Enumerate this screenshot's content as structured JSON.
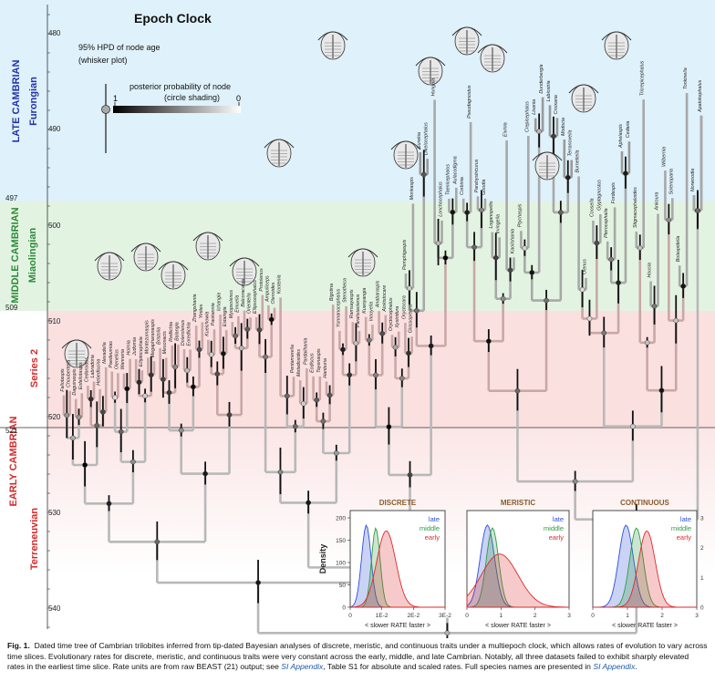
{
  "title": "Epoch Clock",
  "legend": {
    "hpd_label_line1": "95% HPD of node age",
    "hpd_label_line2": "(whisker plot)",
    "pp_label_line1": "posterior probability of node",
    "pp_label_line2": "(circle shading)",
    "pp_max": "1",
    "pp_min": "0"
  },
  "periods": [
    {
      "epoch": "LATE CAMBRIAN",
      "series": "Furongian",
      "color": "#dff1fb"
    },
    {
      "epoch": "MIDDLE CAMBRIAN",
      "series": "Miaolingian",
      "color": "#e4f4e3"
    },
    {
      "epoch": "EARLY CAMBRIAN",
      "series": "Series 2",
      "color": "#fde3e3"
    },
    {
      "epoch": "",
      "series": "Terreneuvian",
      "color": "#fdeeee"
    }
  ],
  "colors": {
    "epoch_label": "#2233aa",
    "series_miaolingian": "#2e8a3a",
    "series_early": "#d42a2a"
  },
  "age_ticks": [
    "480",
    "490",
    "497",
    "500",
    "509",
    "510",
    "520",
    "521",
    "530",
    "540"
  ],
  "taxa_left": [
    "Fallotaspis",
    "Choubertella",
    "Daguinaspis",
    "Eofallotaspis",
    "Cedaroides",
    "Labradoria",
    "Hebediscina",
    "Nevadella",
    "Paedeumias",
    "Olenellus",
    "Wanneria",
    "Holmia",
    "Judomia",
    "Elliptocephala",
    "Montezumaspis",
    "Megapharanaspis",
    "Bristolia",
    "Mesonacis",
    "Redlichia",
    "Balangia",
    "Dolerolenus",
    "Eoredlichia",
    "Zhangshania",
    "Yinites",
    "Kueichowia",
    "Paokannia",
    "Ichangia",
    "Estaingia",
    "Myopsolenus",
    "Emuella",
    "Balcoracania",
    "Orientella",
    "Ellipsocephalus",
    "Protolenus",
    "Ampulliceps",
    "Olenoides",
    "Kootenia"
  ],
  "taxa_right": [
    "Pemphigaspis",
    "Monkaspis",
    "Eurekia",
    "Dikelocephalus",
    "Hungaia",
    "Lonchocephalus",
    "Taenicephalus",
    "Aulacodigma",
    "Corbinia",
    "Pseudagnostus",
    "Parahystricurus",
    "Goodia",
    "Loganopeltis",
    "Irvingella",
    "Elvinia",
    "Kaolishania",
    "Ptychaspis",
    "Crepicephalus",
    "Lisania",
    "Dunderbergia",
    "Labiostria",
    "Croixana",
    "Modocia",
    "Terranovella",
    "Burnetiella",
    "Olenus",
    "Coosella",
    "Glyptagnostus",
    "Pterocephalia",
    "Fordaspis",
    "Aphelaspis",
    "Cedaria",
    "Stigmacephaloides",
    "Tricrepicephalus",
    "Housia",
    "Ankoura",
    "Wilbernia",
    "Solenoparia",
    "Bolaspidella",
    "Tonkinella",
    "Norwoodia",
    "Apatokephalus"
  ],
  "taxa_mid": [
    "Pentamerella",
    "Metadoxides",
    "Pardailhania",
    "Eodiscus",
    "Tayenaspis",
    "Hanburia",
    "Bigotina",
    "Yunnanocephalus",
    "Stenotheca",
    "Ramsayaspis",
    "Parahsiaolenus",
    "Kuanyangia",
    "Inouyella",
    "Anabaraspis",
    "Alokistocare",
    "Oryctocephalus",
    "Xystridura",
    "Oryctocara",
    "Glossopleura"
  ],
  "density_panels": [
    {
      "title": "DISCRETE",
      "xticks": [
        "0",
        "1E-2",
        "2E-2",
        "3E-2"
      ],
      "xlabel": "< slower   RATE   faster >"
    },
    {
      "title": "MERISTIC",
      "xticks": [
        "0",
        "1",
        "2",
        "3"
      ],
      "xlabel": "< slower   RATE   faster >"
    },
    {
      "title": "CONTINUOUS",
      "xticks": [
        "0",
        "1",
        "2",
        "3"
      ],
      "xlabel": "< slower   RATE   faster >"
    }
  ],
  "density_ylabel": "Density",
  "density_yticks": [
    "0",
    "50",
    "100",
    "150",
    "200"
  ],
  "density_yticks_right": [
    "0",
    "1",
    "2",
    "3"
  ],
  "density_legend": [
    {
      "name": "late",
      "color": "#2b4fd8"
    },
    {
      "name": "middle",
      "color": "#2f9a44"
    },
    {
      "name": "early",
      "color": "#dd2a2a"
    }
  ],
  "caption": {
    "fig": "Fig. 1.",
    "text1": "Dated time tree of Cambrian trilobites inferred from tip-dated Bayesian analyses of discrete, meristic, and continuous traits under a multiepoch clock, which allows rates of evolution to vary across time slices. Evolutionary rates for discrete, meristic, and continuous traits were very constant across the early, middle, and late Cambrian. Notably, all three datasets failed to exhibit sharply elevated rates in the earliest time slice. Rate units are from raw BEAST (21) output; see ",
    "link1": "SI Appendix",
    "text2": ", Table S1 for absolute and scaled rates. Full species names are presented in ",
    "link2": "SI Appendix",
    "text3": "."
  }
}
